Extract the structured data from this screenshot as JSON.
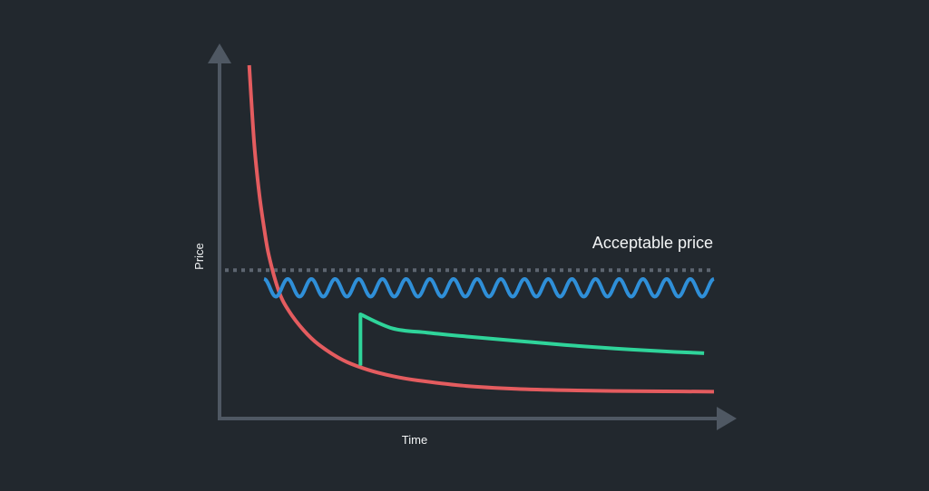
{
  "colors": {
    "background": "#22282e",
    "axis": "#4f5863",
    "acceptable_line": "#5d6570",
    "text": "#f2f4f5",
    "red": "#e45c5f",
    "blue": "#2f8fd8",
    "green": "#2fd49a"
  },
  "chart_data": {
    "type": "line",
    "title": "",
    "xlabel": "Time",
    "ylabel": "Price",
    "xlim": [
      0,
      100
    ],
    "ylim": [
      0,
      100
    ],
    "grid": false,
    "legend": "none",
    "reference_lines": [
      {
        "label": "Acceptable price",
        "y": 42,
        "style": "dotted"
      }
    ],
    "series": [
      {
        "color": "#e45c5f",
        "x": [
          6,
          7,
          8,
          9,
          10,
          12,
          14,
          17,
          20,
          25,
          30,
          35,
          40,
          50,
          60,
          70,
          80,
          90,
          100
        ],
        "y": [
          100,
          78,
          64,
          54,
          46,
          36,
          30.5,
          25,
          21,
          16.5,
          13.8,
          12,
          10.8,
          9.2,
          8.4,
          8,
          7.8,
          7.7,
          7.6
        ]
      },
      {
        "color": "#2f8fd8",
        "style": "wave",
        "x": [
          9,
          100
        ],
        "y": [
          37,
          37
        ],
        "wave_amplitude": 2.5,
        "wave_cycles": 19
      },
      {
        "color": "#2fd49a",
        "x": [
          28.5,
          28.5,
          35,
          42,
          50,
          60,
          70,
          80,
          90,
          98
        ],
        "y": [
          15,
          29.5,
          25.5,
          24.3,
          23.2,
          22,
          20.8,
          19.8,
          19,
          18.5
        ]
      }
    ]
  }
}
